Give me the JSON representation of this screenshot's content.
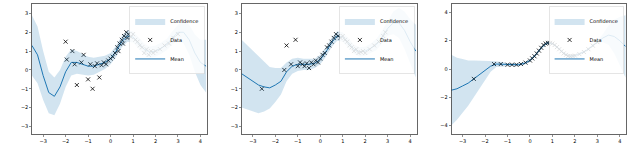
{
  "chart_data": [
    {
      "type": "line",
      "legend": "upper right",
      "grid": false,
      "xlim": [
        -3.5,
        4.3
      ],
      "xticks": [
        {
          "value": -3,
          "label": "−3"
        },
        {
          "value": -2,
          "label": "−2"
        },
        {
          "value": -1,
          "label": "−1"
        },
        0,
        1,
        2,
        3,
        4
      ],
      "ylim": [
        -3.4,
        3.5
      ],
      "yticks": [
        {
          "value": -3,
          "label": "−3"
        },
        {
          "value": -2,
          "label": "−2"
        },
        {
          "value": -1,
          "label": "−1"
        },
        0,
        1,
        2,
        3
      ],
      "x": [
        -3.5,
        -3.25,
        -3.0,
        -2.75,
        -2.5,
        -2.25,
        -2.0,
        -1.75,
        -1.5,
        -1.25,
        -1.0,
        -0.75,
        -0.5,
        -0.25,
        0,
        0.25,
        0.5,
        0.75,
        1.0,
        1.25,
        1.5,
        1.75,
        2.0,
        2.25,
        2.5,
        2.75,
        3.0,
        3.25,
        3.5,
        3.75,
        4.0,
        4.25
      ],
      "series": [
        {
          "name": "Mean",
          "type": "line",
          "color": "#1f77b4",
          "line_style": "solid",
          "values": [
            1.3,
            0.8,
            -0.3,
            -1.2,
            -1.4,
            -0.9,
            -0.1,
            0.4,
            0.4,
            0.3,
            0.2,
            0.2,
            0.3,
            0.4,
            0.6,
            1.0,
            1.5,
            1.8,
            1.75,
            1.45,
            1.1,
            0.95,
            1.0,
            1.15,
            1.35,
            1.7,
            2.0,
            2.0,
            1.6,
            0.9,
            0.4,
            0.2
          ]
        },
        {
          "name": "Data",
          "type": "scatter",
          "marker": "x",
          "color": "#000000",
          "x": [
            -2.0,
            -1.95,
            -1.7,
            -1.6,
            -1.5,
            -1.3,
            -1.2,
            -1.0,
            -0.9,
            -0.8,
            -0.7,
            -0.6,
            -0.5,
            -0.4,
            -0.3,
            -0.2,
            -0.1,
            0.0,
            0.1,
            0.2,
            0.3,
            0.35,
            0.4,
            0.5,
            0.55,
            0.6,
            0.7,
            0.75,
            0.8,
            0.9,
            1.0,
            1.1,
            1.2,
            1.3,
            1.4,
            1.5,
            1.6,
            1.7,
            1.8,
            1.9,
            2.0,
            2.2,
            2.4,
            2.6,
            2.8,
            3.0
          ],
          "values": [
            1.5,
            0.55,
            1.0,
            0.3,
            -0.8,
            0.4,
            0.8,
            -0.5,
            0.3,
            -1.0,
            0.2,
            0.35,
            -0.4,
            0.25,
            0.4,
            0.3,
            0.5,
            0.6,
            0.7,
            0.9,
            1.2,
            1.0,
            1.4,
            1.6,
            1.4,
            1.8,
            2.0,
            1.7,
            1.9,
            1.75,
            1.9,
            1.6,
            1.5,
            1.3,
            1.2,
            0.9,
            1.1,
            0.8,
            1.0,
            0.9,
            1.0,
            1.1,
            1.3,
            1.4,
            1.7,
            1.9
          ]
        },
        {
          "name": "Confidence",
          "type": "band",
          "color": "rgba(31,119,180,0.2)",
          "lower": [
            -0.3,
            -0.7,
            -1.6,
            -2.3,
            -2.4,
            -1.8,
            -0.9,
            -0.3,
            -0.2,
            -0.25,
            -0.3,
            -0.25,
            -0.1,
            0.05,
            0.3,
            0.7,
            1.2,
            1.5,
            1.45,
            1.15,
            0.8,
            0.65,
            0.7,
            0.85,
            1.05,
            1.35,
            1.6,
            1.4,
            0.8,
            -0.1,
            -0.8,
            -1.2
          ],
          "upper": [
            2.9,
            2.3,
            1.0,
            -0.1,
            -0.4,
            0.0,
            0.7,
            1.1,
            1.0,
            0.85,
            0.7,
            0.65,
            0.7,
            0.75,
            0.9,
            1.3,
            1.8,
            2.1,
            2.05,
            1.75,
            1.4,
            1.25,
            1.3,
            1.45,
            1.65,
            2.05,
            2.4,
            2.6,
            2.4,
            1.9,
            1.6,
            1.6
          ]
        }
      ]
    },
    {
      "type": "line",
      "legend": "upper right",
      "grid": false,
      "xlim": [
        -3.5,
        4.3
      ],
      "xticks": [
        {
          "value": -3,
          "label": "−3"
        },
        {
          "value": -2,
          "label": "−2"
        },
        {
          "value": -1,
          "label": "−1"
        },
        0,
        1,
        2,
        3,
        4
      ],
      "ylim": [
        -3.4,
        3.5
      ],
      "yticks": [
        {
          "value": -3,
          "label": "−3"
        },
        {
          "value": -2,
          "label": "−2"
        },
        {
          "value": -1,
          "label": "−1"
        },
        0,
        1,
        2,
        3
      ],
      "x": [
        -3.5,
        -3.25,
        -3.0,
        -2.75,
        -2.5,
        -2.25,
        -2.0,
        -1.75,
        -1.5,
        -1.25,
        -1.0,
        -0.75,
        -0.5,
        -0.25,
        0,
        0.25,
        0.5,
        0.75,
        1.0,
        1.25,
        1.5,
        1.75,
        2.0,
        2.25,
        2.5,
        2.75,
        3.0,
        3.25,
        3.5,
        3.75,
        4.0,
        4.25
      ],
      "series": [
        {
          "name": "Mean",
          "type": "line",
          "color": "#1f77b4",
          "line_style": "solid",
          "values": [
            -0.2,
            -0.4,
            -0.6,
            -0.8,
            -0.9,
            -0.95,
            -0.8,
            -0.6,
            -0.1,
            0.2,
            0.3,
            0.3,
            0.3,
            0.35,
            0.55,
            0.95,
            1.45,
            1.8,
            1.75,
            1.45,
            1.1,
            0.95,
            1.0,
            1.15,
            1.35,
            1.75,
            2.2,
            2.5,
            2.5,
            2.1,
            1.5,
            1.0
          ]
        },
        {
          "name": "Data",
          "type": "scatter",
          "marker": "x",
          "color": "#000000",
          "x": [
            -2.6,
            -1.6,
            -1.5,
            -1.3,
            -1.1,
            -1.0,
            -0.9,
            -0.8,
            -0.7,
            -0.6,
            -0.5,
            -0.4,
            -0.3,
            -0.2,
            -0.1,
            0.0,
            0.1,
            0.2,
            0.3,
            0.4,
            0.5,
            0.6,
            0.7,
            0.8,
            0.9,
            1.0,
            1.1,
            1.2,
            1.3,
            1.4,
            1.5,
            1.6,
            1.7,
            1.8,
            1.9,
            2.0,
            2.2,
            2.4,
            2.6,
            2.8,
            2.9
          ],
          "values": [
            -1.0,
            0.0,
            1.3,
            0.3,
            1.6,
            0.2,
            0.4,
            0.3,
            0.2,
            0.35,
            0.1,
            0.4,
            0.3,
            0.5,
            0.4,
            0.6,
            0.8,
            0.9,
            1.2,
            1.3,
            1.5,
            1.7,
            1.9,
            1.8,
            1.7,
            1.8,
            1.6,
            1.5,
            1.3,
            1.2,
            1.0,
            1.1,
            0.9,
            0.95,
            1.0,
            0.9,
            1.1,
            1.3,
            1.5,
            1.8,
            2.0
          ]
        },
        {
          "name": "Confidence",
          "type": "band",
          "color": "rgba(31,119,180,0.2)",
          "lower": [
            -2.0,
            -2.1,
            -2.2,
            -2.3,
            -2.2,
            -2.05,
            -1.7,
            -1.3,
            -0.6,
            -0.2,
            -0.05,
            0.0,
            0.0,
            0.1,
            0.3,
            0.7,
            1.2,
            1.55,
            1.5,
            1.2,
            0.85,
            0.7,
            0.75,
            0.9,
            1.05,
            1.4,
            1.8,
            1.9,
            1.7,
            1.1,
            0.3,
            -0.4
          ],
          "upper": [
            1.6,
            1.3,
            1.0,
            0.7,
            0.4,
            0.15,
            0.1,
            0.1,
            0.4,
            0.6,
            0.65,
            0.6,
            0.6,
            0.6,
            0.8,
            1.2,
            1.7,
            2.05,
            2.0,
            1.7,
            1.35,
            1.2,
            1.25,
            1.4,
            1.65,
            2.1,
            2.6,
            3.1,
            3.3,
            3.1,
            2.7,
            2.4
          ]
        }
      ]
    },
    {
      "type": "line",
      "legend": "upper right",
      "grid": false,
      "xlim": [
        -3.5,
        4.3
      ],
      "xticks": [
        {
          "value": -3,
          "label": "−3"
        },
        {
          "value": -2,
          "label": "−2"
        },
        {
          "value": -1,
          "label": "−1"
        },
        0,
        1,
        2,
        3,
        4
      ],
      "ylim": [
        -4.6,
        4.6
      ],
      "yticks": [
        {
          "value": -4,
          "label": "−4"
        },
        {
          "value": -2,
          "label": "−2"
        },
        0,
        2,
        4
      ],
      "x": [
        -3.5,
        -3.25,
        -3.0,
        -2.75,
        -2.5,
        -2.25,
        -2.0,
        -1.75,
        -1.5,
        -1.25,
        -1.0,
        -0.75,
        -0.5,
        -0.25,
        0,
        0.25,
        0.5,
        0.75,
        1.0,
        1.25,
        1.5,
        1.75,
        2.0,
        2.25,
        2.5,
        2.75,
        3.0,
        3.25,
        3.5,
        3.75,
        4.0,
        4.25
      ],
      "series": [
        {
          "name": "Mean",
          "type": "line",
          "color": "#1f77b4",
          "line_style": "solid",
          "values": [
            -1.5,
            -1.4,
            -1.2,
            -1.0,
            -0.7,
            -0.4,
            -0.1,
            0.2,
            0.35,
            0.35,
            0.3,
            0.3,
            0.3,
            0.4,
            0.6,
            1.0,
            1.5,
            1.85,
            1.8,
            1.5,
            1.1,
            0.9,
            0.95,
            1.1,
            1.3,
            1.6,
            1.9,
            2.2,
            2.4,
            2.3,
            2.0,
            1.6
          ]
        },
        {
          "name": "Data",
          "type": "scatter",
          "marker": "x",
          "color": "#000000",
          "x": [
            -2.5,
            -1.6,
            -1.3,
            -1.0,
            -0.8,
            -0.6,
            -0.4,
            -0.2,
            0.0,
            0.1,
            0.2,
            0.3,
            0.4,
            0.5,
            0.6,
            0.7,
            0.8,
            0.9,
            1.0,
            1.1,
            1.2,
            1.3,
            1.4,
            1.5,
            1.6,
            1.7,
            1.8,
            1.9,
            2.0,
            2.2,
            2.4,
            2.6,
            2.8,
            3.0
          ],
          "values": [
            -0.7,
            0.35,
            0.35,
            0.3,
            0.3,
            0.3,
            0.35,
            0.45,
            0.6,
            0.75,
            0.9,
            1.1,
            1.3,
            1.5,
            1.7,
            1.8,
            1.85,
            1.85,
            1.8,
            1.7,
            1.55,
            1.4,
            1.25,
            1.1,
            1.0,
            0.92,
            0.9,
            0.92,
            0.95,
            1.05,
            1.2,
            1.4,
            1.65,
            1.9
          ]
        },
        {
          "name": "Confidence",
          "type": "band",
          "color": "rgba(31,119,180,0.2)",
          "lower": [
            -4.0,
            -3.6,
            -3.1,
            -2.6,
            -2.0,
            -1.4,
            -0.8,
            -0.2,
            0.15,
            0.2,
            0.2,
            0.2,
            0.2,
            0.3,
            0.5,
            0.9,
            1.4,
            1.75,
            1.7,
            1.4,
            1.0,
            0.8,
            0.85,
            1.0,
            1.2,
            1.5,
            1.8,
            1.9,
            1.7,
            1.1,
            0.3,
            -0.6
          ],
          "upper": [
            1.0,
            0.8,
            0.7,
            0.6,
            0.6,
            0.6,
            0.6,
            0.6,
            0.55,
            0.5,
            0.4,
            0.4,
            0.4,
            0.5,
            0.7,
            1.1,
            1.6,
            1.95,
            1.9,
            1.6,
            1.2,
            1.0,
            1.05,
            1.2,
            1.4,
            1.7,
            2.0,
            2.5,
            3.1,
            3.5,
            3.7,
            3.8
          ]
        }
      ]
    }
  ]
}
